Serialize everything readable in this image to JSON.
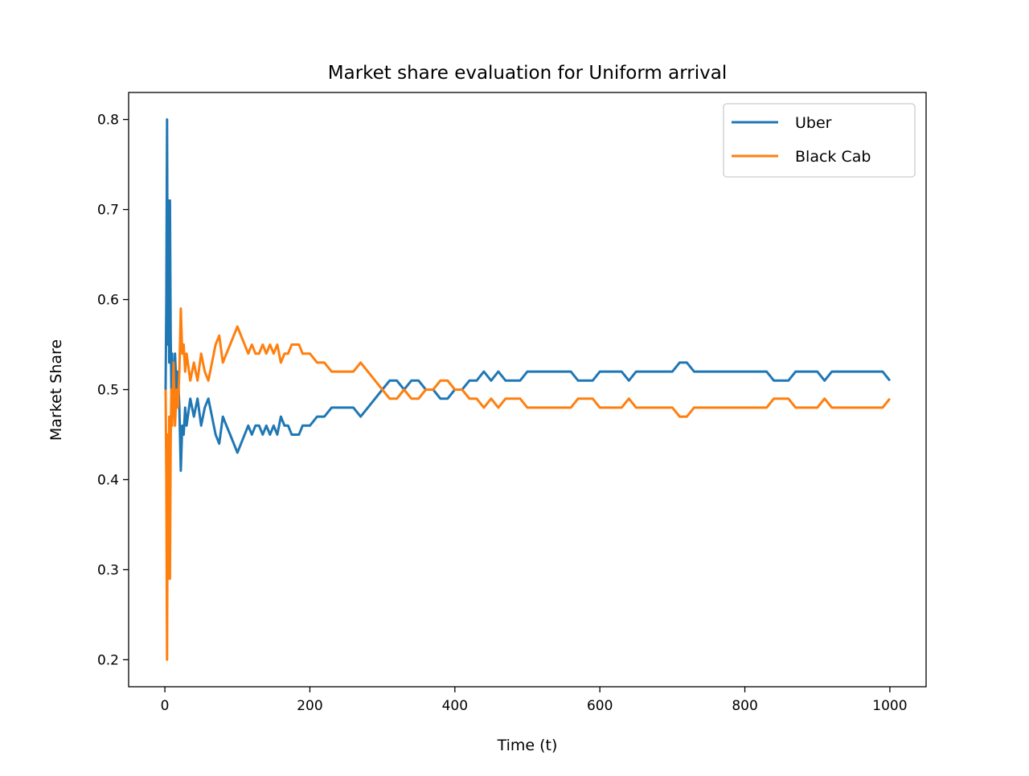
{
  "chart_data": {
    "type": "line",
    "title": "Market share evaluation for Uniform arrival",
    "xlabel": "Time (t)",
    "ylabel": "Market Share",
    "xlim": [
      -50,
      1050
    ],
    "ylim": [
      0.17,
      0.83
    ],
    "xticks": [
      0,
      200,
      400,
      600,
      800,
      1000
    ],
    "yticks": [
      0.2,
      0.3,
      0.4,
      0.5,
      0.6,
      0.7,
      0.8
    ],
    "grid": false,
    "legend_position": "upper right",
    "series": [
      {
        "name": "Uber",
        "color": "#1f77b4",
        "x": [
          1,
          2,
          3,
          4,
          5,
          6,
          7,
          8,
          9,
          10,
          12,
          14,
          16,
          18,
          20,
          22,
          24,
          26,
          28,
          30,
          35,
          40,
          45,
          50,
          55,
          60,
          65,
          70,
          75,
          80,
          85,
          90,
          95,
          100,
          105,
          110,
          115,
          120,
          125,
          130,
          135,
          140,
          145,
          150,
          155,
          160,
          165,
          170,
          175,
          180,
          185,
          190,
          195,
          200,
          210,
          220,
          230,
          240,
          250,
          260,
          270,
          280,
          290,
          300,
          310,
          320,
          330,
          340,
          350,
          360,
          370,
          380,
          390,
          400,
          410,
          420,
          430,
          440,
          450,
          460,
          470,
          480,
          490,
          500,
          510,
          520,
          530,
          540,
          550,
          560,
          570,
          580,
          590,
          600,
          610,
          620,
          630,
          640,
          650,
          660,
          670,
          680,
          690,
          700,
          710,
          720,
          730,
          740,
          750,
          760,
          770,
          780,
          790,
          800,
          810,
          820,
          830,
          840,
          850,
          860,
          870,
          880,
          890,
          900,
          910,
          920,
          930,
          940,
          950,
          960,
          970,
          980,
          990,
          1000
        ],
        "y": [
          0.5,
          0.6,
          0.8,
          0.55,
          0.71,
          0.53,
          0.71,
          0.56,
          0.5,
          0.54,
          0.47,
          0.54,
          0.5,
          0.52,
          0.48,
          0.41,
          0.46,
          0.45,
          0.48,
          0.46,
          0.49,
          0.47,
          0.49,
          0.46,
          0.48,
          0.49,
          0.47,
          0.45,
          0.44,
          0.47,
          0.46,
          0.45,
          0.44,
          0.43,
          0.44,
          0.45,
          0.46,
          0.45,
          0.46,
          0.46,
          0.45,
          0.46,
          0.45,
          0.46,
          0.45,
          0.47,
          0.46,
          0.46,
          0.45,
          0.45,
          0.45,
          0.46,
          0.46,
          0.46,
          0.47,
          0.47,
          0.48,
          0.48,
          0.48,
          0.48,
          0.47,
          0.48,
          0.49,
          0.5,
          0.51,
          0.51,
          0.5,
          0.51,
          0.51,
          0.5,
          0.5,
          0.49,
          0.49,
          0.5,
          0.5,
          0.51,
          0.51,
          0.52,
          0.51,
          0.52,
          0.51,
          0.51,
          0.51,
          0.52,
          0.52,
          0.52,
          0.52,
          0.52,
          0.52,
          0.52,
          0.51,
          0.51,
          0.51,
          0.52,
          0.52,
          0.52,
          0.52,
          0.51,
          0.52,
          0.52,
          0.52,
          0.52,
          0.52,
          0.52,
          0.53,
          0.53,
          0.52,
          0.52,
          0.52,
          0.52,
          0.52,
          0.52,
          0.52,
          0.52,
          0.52,
          0.52,
          0.52,
          0.51,
          0.51,
          0.51,
          0.52,
          0.52,
          0.52,
          0.52,
          0.51,
          0.52,
          0.52,
          0.52,
          0.52,
          0.52,
          0.52,
          0.52,
          0.52,
          0.51
        ]
      },
      {
        "name": "Black Cab",
        "color": "#ff7f0e",
        "x": [
          1,
          2,
          3,
          4,
          5,
          6,
          7,
          8,
          9,
          10,
          12,
          14,
          16,
          18,
          20,
          22,
          24,
          26,
          28,
          30,
          35,
          40,
          45,
          50,
          55,
          60,
          65,
          70,
          75,
          80,
          85,
          90,
          95,
          100,
          105,
          110,
          115,
          120,
          125,
          130,
          135,
          140,
          145,
          150,
          155,
          160,
          165,
          170,
          175,
          180,
          185,
          190,
          195,
          200,
          210,
          220,
          230,
          240,
          250,
          260,
          270,
          280,
          290,
          300,
          310,
          320,
          330,
          340,
          350,
          360,
          370,
          380,
          390,
          400,
          410,
          420,
          430,
          440,
          450,
          460,
          470,
          480,
          490,
          500,
          510,
          520,
          530,
          540,
          550,
          560,
          570,
          580,
          590,
          600,
          610,
          620,
          630,
          640,
          650,
          660,
          670,
          680,
          690,
          700,
          710,
          720,
          730,
          740,
          750,
          760,
          770,
          780,
          790,
          800,
          810,
          820,
          830,
          840,
          850,
          860,
          870,
          880,
          890,
          900,
          910,
          920,
          930,
          940,
          950,
          960,
          970,
          980,
          990,
          1000
        ],
        "y": [
          0.5,
          0.4,
          0.2,
          0.45,
          0.29,
          0.47,
          0.29,
          0.44,
          0.5,
          0.46,
          0.53,
          0.46,
          0.5,
          0.48,
          0.52,
          0.59,
          0.54,
          0.55,
          0.52,
          0.54,
          0.51,
          0.53,
          0.51,
          0.54,
          0.52,
          0.51,
          0.53,
          0.55,
          0.56,
          0.53,
          0.54,
          0.55,
          0.56,
          0.57,
          0.56,
          0.55,
          0.54,
          0.55,
          0.54,
          0.54,
          0.55,
          0.54,
          0.55,
          0.54,
          0.55,
          0.53,
          0.54,
          0.54,
          0.55,
          0.55,
          0.55,
          0.54,
          0.54,
          0.54,
          0.53,
          0.53,
          0.52,
          0.52,
          0.52,
          0.52,
          0.53,
          0.52,
          0.51,
          0.5,
          0.49,
          0.49,
          0.5,
          0.49,
          0.49,
          0.5,
          0.5,
          0.51,
          0.51,
          0.5,
          0.5,
          0.49,
          0.49,
          0.48,
          0.49,
          0.48,
          0.49,
          0.49,
          0.49,
          0.48,
          0.48,
          0.48,
          0.48,
          0.48,
          0.48,
          0.48,
          0.49,
          0.49,
          0.49,
          0.48,
          0.48,
          0.48,
          0.48,
          0.49,
          0.48,
          0.48,
          0.48,
          0.48,
          0.48,
          0.48,
          0.47,
          0.47,
          0.48,
          0.48,
          0.48,
          0.48,
          0.48,
          0.48,
          0.48,
          0.48,
          0.48,
          0.48,
          0.48,
          0.49,
          0.49,
          0.49,
          0.48,
          0.48,
          0.48,
          0.48,
          0.49,
          0.48,
          0.48,
          0.48,
          0.48,
          0.48,
          0.48,
          0.48,
          0.48,
          0.49
        ]
      }
    ]
  }
}
